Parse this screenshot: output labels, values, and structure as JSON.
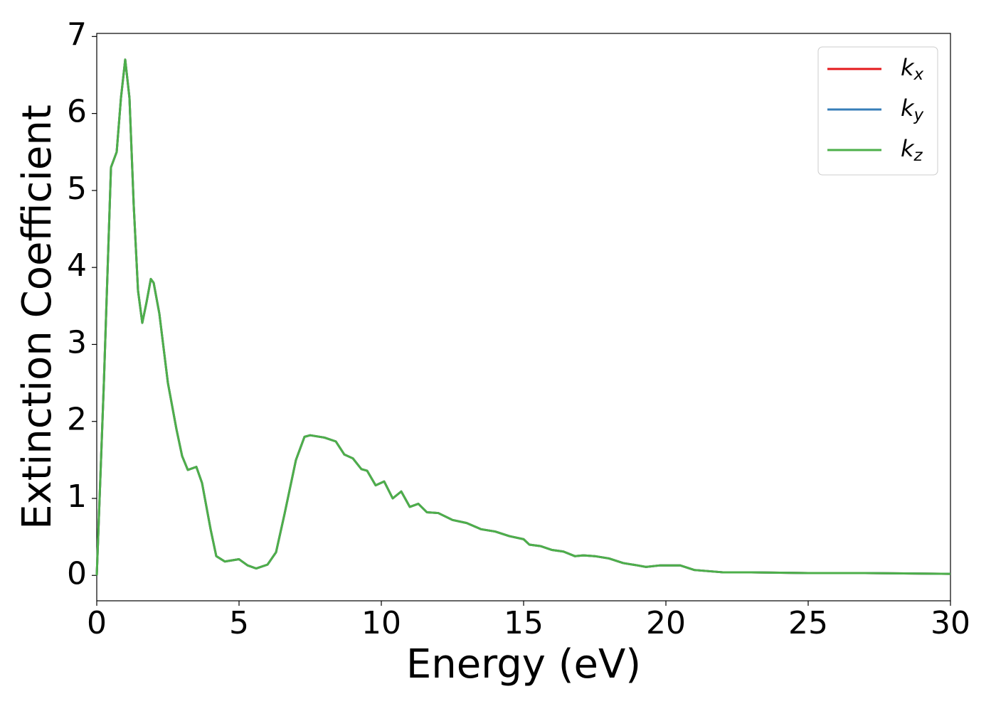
{
  "chart_data": {
    "type": "line",
    "xlabel": "Energy (eV)",
    "ylabel": "Extinction Coefficient",
    "x": [
      0,
      0.25,
      0.5,
      0.7,
      0.85,
      1.0,
      1.15,
      1.3,
      1.45,
      1.6,
      1.75,
      1.9,
      2.0,
      2.2,
      2.5,
      2.8,
      3.0,
      3.2,
      3.5,
      3.7,
      4.0,
      4.2,
      4.5,
      5.0,
      5.3,
      5.6,
      6.0,
      6.3,
      6.6,
      7.0,
      7.3,
      7.5,
      8.0,
      8.4,
      8.7,
      9.0,
      9.3,
      9.5,
      9.8,
      10.1,
      10.4,
      10.7,
      11.0,
      11.3,
      11.6,
      12.0,
      12.5,
      13.0,
      13.5,
      14.0,
      14.5,
      15.0,
      15.2,
      15.6,
      16.0,
      16.4,
      16.8,
      17.1,
      17.5,
      18.0,
      18.5,
      19.0,
      19.3,
      19.8,
      20.5,
      21.0,
      22.0,
      23.0,
      25.0,
      27.0,
      30.0
    ],
    "series": [
      {
        "name": "kx",
        "color": "#e41a1c",
        "values": [
          0,
          2.5,
          5.3,
          5.5,
          6.2,
          6.7,
          6.2,
          4.8,
          3.7,
          3.28,
          3.55,
          3.85,
          3.8,
          3.4,
          2.5,
          1.9,
          1.55,
          1.37,
          1.41,
          1.2,
          0.6,
          0.25,
          0.18,
          0.21,
          0.13,
          0.09,
          0.14,
          0.3,
          0.8,
          1.5,
          1.8,
          1.82,
          1.79,
          1.74,
          1.57,
          1.52,
          1.38,
          1.36,
          1.17,
          1.22,
          1.0,
          1.09,
          0.89,
          0.93,
          0.82,
          0.81,
          0.72,
          0.68,
          0.6,
          0.57,
          0.51,
          0.47,
          0.4,
          0.38,
          0.33,
          0.31,
          0.25,
          0.26,
          0.25,
          0.22,
          0.16,
          0.13,
          0.11,
          0.13,
          0.13,
          0.07,
          0.04,
          0.04,
          0.03,
          0.03,
          0.02
        ]
      },
      {
        "name": "ky",
        "color": "#377eb8",
        "values": [
          0,
          2.5,
          5.3,
          5.5,
          6.2,
          6.7,
          6.2,
          4.8,
          3.7,
          3.28,
          3.55,
          3.85,
          3.8,
          3.4,
          2.5,
          1.9,
          1.55,
          1.37,
          1.41,
          1.2,
          0.6,
          0.25,
          0.18,
          0.21,
          0.13,
          0.09,
          0.14,
          0.3,
          0.8,
          1.5,
          1.8,
          1.82,
          1.79,
          1.74,
          1.57,
          1.52,
          1.38,
          1.36,
          1.17,
          1.22,
          1.0,
          1.09,
          0.89,
          0.93,
          0.82,
          0.81,
          0.72,
          0.68,
          0.6,
          0.57,
          0.51,
          0.47,
          0.4,
          0.38,
          0.33,
          0.31,
          0.25,
          0.26,
          0.25,
          0.22,
          0.16,
          0.13,
          0.11,
          0.13,
          0.13,
          0.07,
          0.04,
          0.04,
          0.03,
          0.03,
          0.02
        ]
      },
      {
        "name": "kz",
        "color": "#4daf4a",
        "values": [
          0,
          2.5,
          5.3,
          5.5,
          6.2,
          6.7,
          6.2,
          4.8,
          3.7,
          3.28,
          3.55,
          3.85,
          3.8,
          3.4,
          2.5,
          1.9,
          1.55,
          1.37,
          1.41,
          1.2,
          0.6,
          0.25,
          0.18,
          0.21,
          0.13,
          0.09,
          0.14,
          0.3,
          0.8,
          1.5,
          1.8,
          1.82,
          1.79,
          1.74,
          1.57,
          1.52,
          1.38,
          1.36,
          1.17,
          1.22,
          1.0,
          1.09,
          0.89,
          0.93,
          0.82,
          0.81,
          0.72,
          0.68,
          0.6,
          0.57,
          0.51,
          0.47,
          0.4,
          0.38,
          0.33,
          0.31,
          0.25,
          0.26,
          0.25,
          0.22,
          0.16,
          0.13,
          0.11,
          0.13,
          0.13,
          0.07,
          0.04,
          0.04,
          0.03,
          0.03,
          0.02
        ]
      }
    ],
    "xlim": [
      0,
      30
    ],
    "xticks": [
      0,
      5,
      10,
      15,
      20,
      25,
      30
    ],
    "ylim": [
      -0.33,
      7.04
    ],
    "yticks": [
      0,
      1,
      2,
      3,
      4,
      5,
      6,
      7
    ],
    "grid": false,
    "legend": "upper right"
  }
}
